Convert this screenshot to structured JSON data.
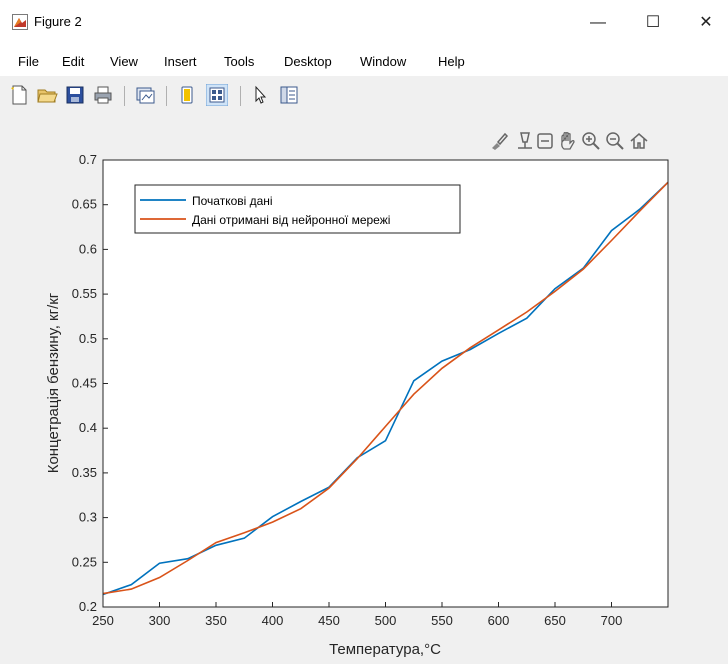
{
  "window": {
    "title": "Figure 2"
  },
  "window_controls": {
    "minimize": "—",
    "maximize": "☐",
    "close": "✕"
  },
  "menu": [
    "File",
    "Edit",
    "View",
    "Insert",
    "Tools",
    "Desktop",
    "Window",
    "Help"
  ],
  "toolbar_icons": [
    "new-figure-icon",
    "open-folder-icon",
    "save-icon",
    "print-icon",
    "link-plot-icon",
    "hide-toolbar-icon",
    "colorbar-icon",
    "pointer-icon",
    "property-inspector-icon"
  ],
  "axes_toolbar_icons": [
    "brush-icon",
    "data-tips-icon",
    "rotate-icon",
    "pan-icon",
    "zoom-in-icon",
    "zoom-out-icon",
    "home-icon"
  ],
  "chart_data": {
    "type": "line",
    "title": "",
    "xlabel": "Температура,°С",
    "ylabel": "Концетрація бензину, кг/кг",
    "xlim": [
      250,
      750
    ],
    "ylim": [
      0.2,
      0.7
    ],
    "xticks": [
      "250",
      "300",
      "350",
      "400",
      "450",
      "500",
      "550",
      "600",
      "650",
      "700"
    ],
    "yticks": [
      "0.2",
      "0.25",
      "0.3",
      "0.35",
      "0.4",
      "0.45",
      "0.5",
      "0.55",
      "0.6",
      "0.65",
      "0.7"
    ],
    "grid": false,
    "legend_position": "top-left",
    "series": [
      {
        "name": "Початкові дані",
        "color": "#0072BD",
        "x": [
          250,
          275,
          300,
          325,
          350,
          375,
          400,
          425,
          450,
          475,
          500,
          525,
          550,
          575,
          600,
          625,
          650,
          675,
          700,
          725,
          750
        ],
        "y": [
          0.214,
          0.225,
          0.249,
          0.254,
          0.269,
          0.277,
          0.301,
          0.318,
          0.334,
          0.367,
          0.386,
          0.453,
          0.475,
          0.488,
          0.506,
          0.523,
          0.556,
          0.579,
          0.621,
          0.645,
          0.675
        ]
      },
      {
        "name": "Дані отримані від нейронної мережі",
        "color": "#D95319",
        "x": [
          250,
          275,
          300,
          325,
          350,
          375,
          400,
          425,
          450,
          475,
          500,
          525,
          550,
          575,
          600,
          625,
          650,
          675,
          700,
          725,
          750
        ],
        "y": [
          0.215,
          0.22,
          0.233,
          0.252,
          0.272,
          0.283,
          0.295,
          0.31,
          0.333,
          0.366,
          0.402,
          0.438,
          0.467,
          0.49,
          0.51,
          0.53,
          0.553,
          0.578,
          0.61,
          0.643,
          0.675
        ]
      }
    ]
  }
}
